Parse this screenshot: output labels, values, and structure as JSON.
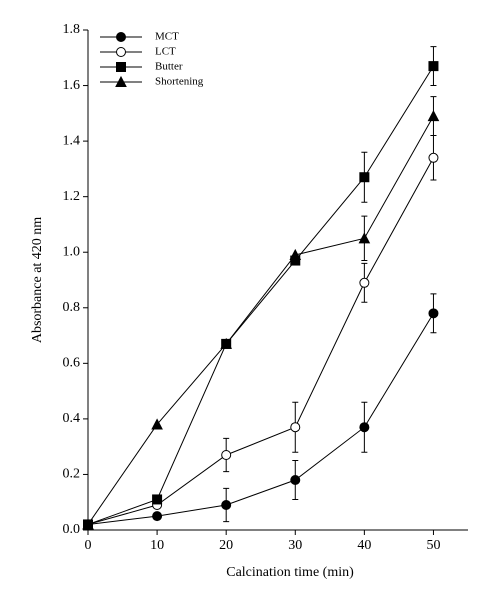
{
  "chart_data": {
    "type": "line",
    "xlabel": "Calcination time (min)",
    "ylabel": "Absorbance at 420 nm",
    "x": [
      0,
      10,
      20,
      30,
      40,
      50
    ],
    "series": [
      {
        "name": "MCT",
        "color": "#000000",
        "marker": "filled-circle",
        "values": [
          0.02,
          0.05,
          0.09,
          0.18,
          0.37,
          0.78
        ],
        "errors": [
          null,
          null,
          0.06,
          0.07,
          0.09,
          0.07
        ]
      },
      {
        "name": "LCT",
        "color": "#000000",
        "marker": "open-circle",
        "values": [
          0.02,
          0.09,
          0.27,
          0.37,
          0.89,
          1.34
        ],
        "errors": [
          null,
          null,
          0.06,
          0.09,
          0.07,
          0.08
        ]
      },
      {
        "name": "Butter",
        "color": "#000000",
        "marker": "filled-square",
        "values": [
          0.02,
          0.11,
          0.67,
          0.97,
          1.27,
          1.67
        ],
        "errors": [
          null,
          null,
          null,
          null,
          0.09,
          0.07
        ]
      },
      {
        "name": "Shortening",
        "color": "#000000",
        "marker": "filled-triangle",
        "values": [
          0.02,
          0.38,
          0.67,
          0.99,
          1.05,
          1.49
        ],
        "errors": [
          null,
          null,
          null,
          null,
          0.08,
          0.07
        ]
      }
    ],
    "xlim": [
      0,
      55
    ],
    "xticks": [
      0,
      10,
      20,
      30,
      40,
      50
    ],
    "ylim": [
      0,
      1.8
    ],
    "yticks": [
      {
        "value": 0,
        "label": "0.0"
      },
      0.2,
      0.4,
      0.6,
      0.8,
      {
        "value": 1,
        "label": "1.0"
      },
      1.2,
      1.4,
      1.6,
      1.8
    ],
    "legend": "upper left"
  }
}
